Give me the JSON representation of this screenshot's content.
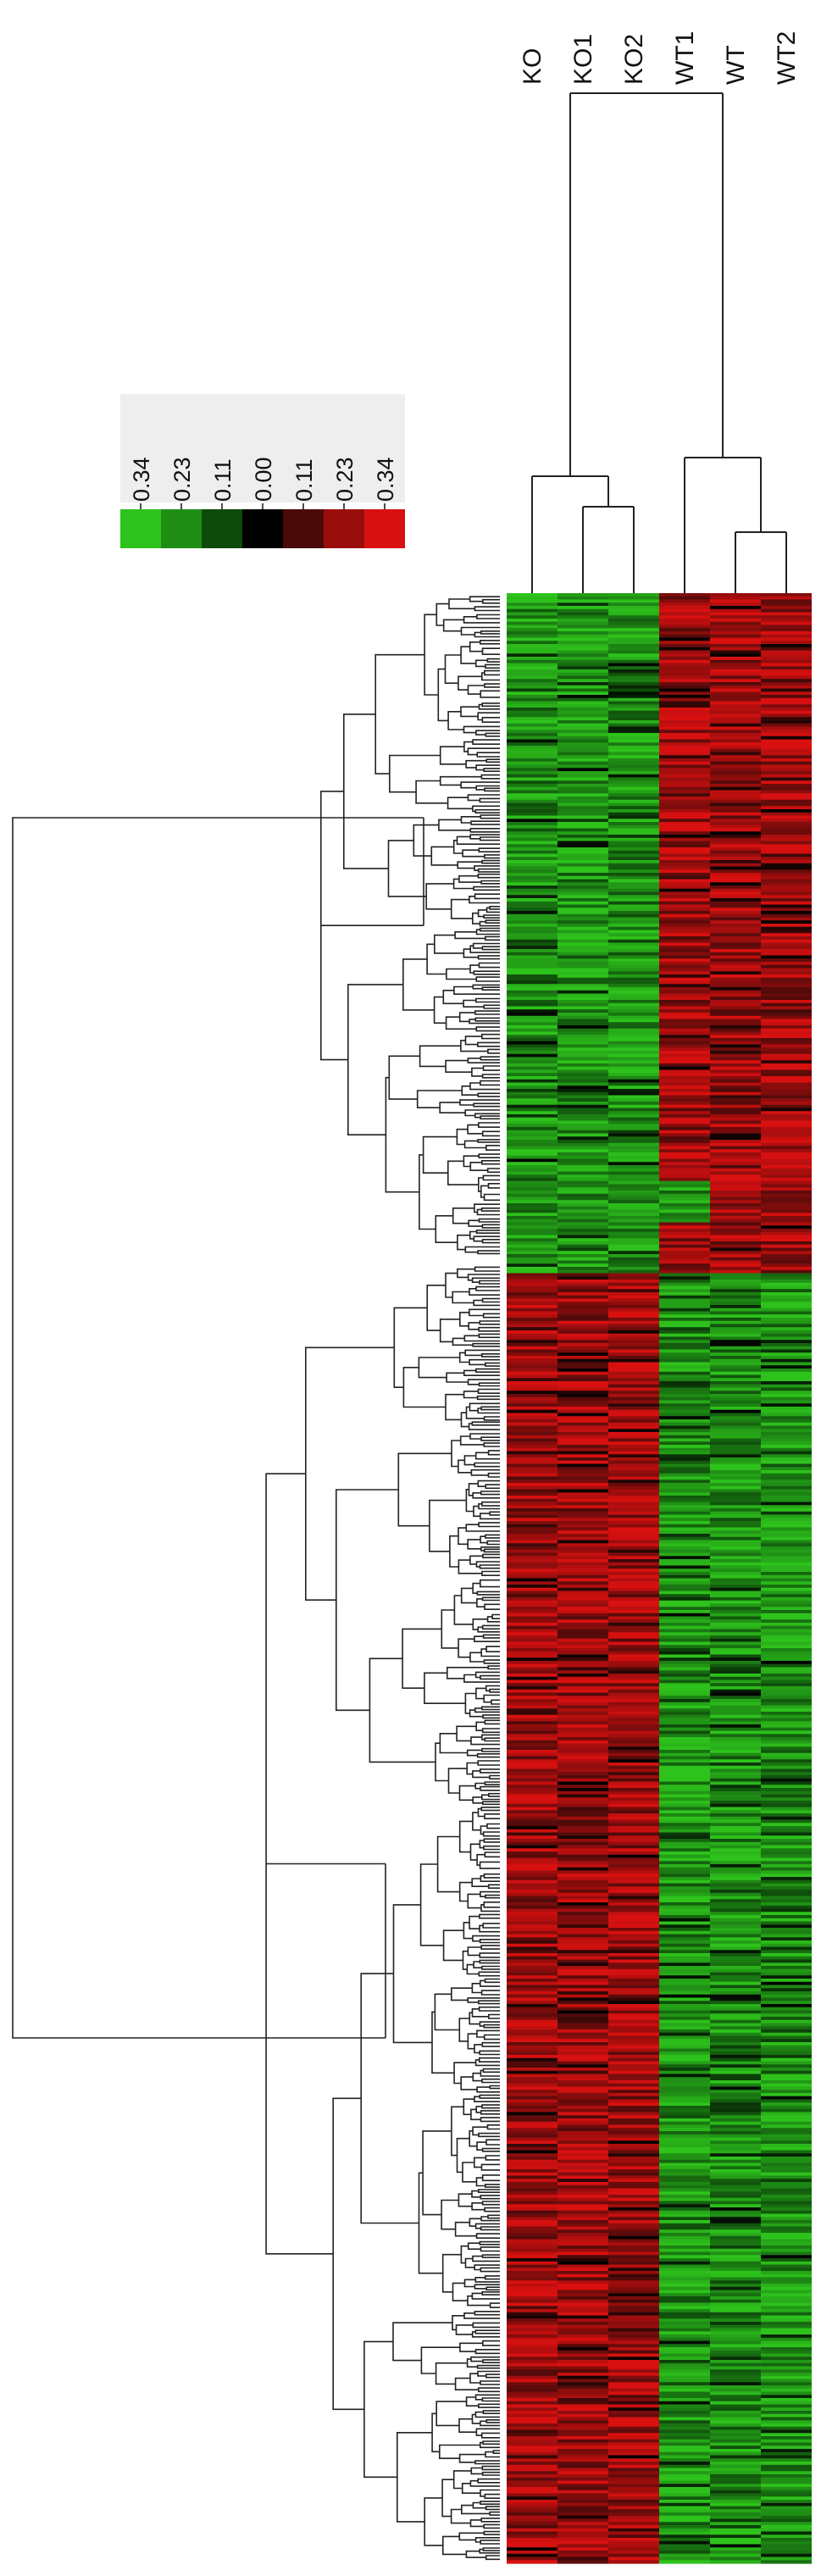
{
  "chart_data": {
    "type": "heatmap",
    "samples": [
      "KO",
      "KO1",
      "KO2",
      "WT1",
      "WT",
      "WT2"
    ],
    "color_scale": {
      "labels": [
        "0.34",
        "0.23",
        "0.11",
        "0.00",
        "0.11",
        "0.23",
        "0.34"
      ],
      "colors": [
        "#2ec21c",
        "#1f8e15",
        "#0e4a0b",
        "#000000",
        "#4a0a0a",
        "#9a0d0d",
        "#d81010"
      ]
    },
    "column_clusters": [
      {
        "members": [
          "KO",
          "KO1",
          "KO2"
        ],
        "sub": [
          [
            "KO"
          ],
          [
            "KO1",
            "KO2"
          ]
        ]
      },
      {
        "members": [
          "WT1",
          "WT",
          "WT2"
        ],
        "sub": [
          [
            "WT1"
          ],
          [
            "WT",
            "WT2"
          ]
        ]
      }
    ],
    "row_clusters": [
      {
        "name": "",
        "pattern": "KO down / WT up",
        "approx_fraction": 0.345
      },
      {
        "name": "",
        "pattern": "KO up / WT down",
        "approx_fraction": 0.655
      }
    ],
    "value_range": [
      -0.34,
      0.34
    ],
    "colors": {
      "low": "#2ec21c",
      "mid": "#000000",
      "high": "#d81010"
    }
  }
}
